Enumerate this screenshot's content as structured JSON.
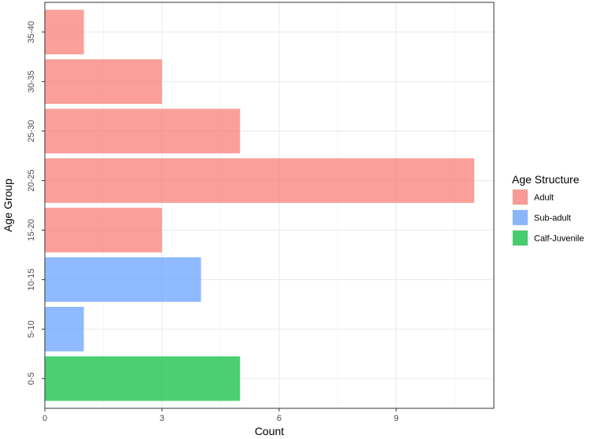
{
  "chart_data": {
    "type": "bar",
    "orientation": "horizontal",
    "title": "",
    "xlabel": "Count",
    "ylabel": "Age Group",
    "xlim": [
      0,
      11.5
    ],
    "x_ticks": [
      0,
      3,
      6,
      9
    ],
    "grid": true,
    "legend_placement": "right",
    "categories": [
      "0-5",
      "5-10",
      "10-15",
      "15-20",
      "20-25",
      "25-30",
      "30-35",
      "35-40"
    ],
    "values": [
      5,
      1,
      4,
      3,
      11,
      5,
      3,
      1
    ],
    "groups": [
      "Calf-Juvenile",
      "Sub-adult",
      "Sub-adult",
      "Adult",
      "Adult",
      "Adult",
      "Adult",
      "Adult"
    ],
    "legend": {
      "title": "Age Structure",
      "entries": [
        {
          "name": "Adult",
          "color": "#f8766d"
        },
        {
          "name": "Sub-adult",
          "color": "#619cff"
        },
        {
          "name": "Calf-Juvenile",
          "color": "#00ba38"
        }
      ]
    }
  }
}
